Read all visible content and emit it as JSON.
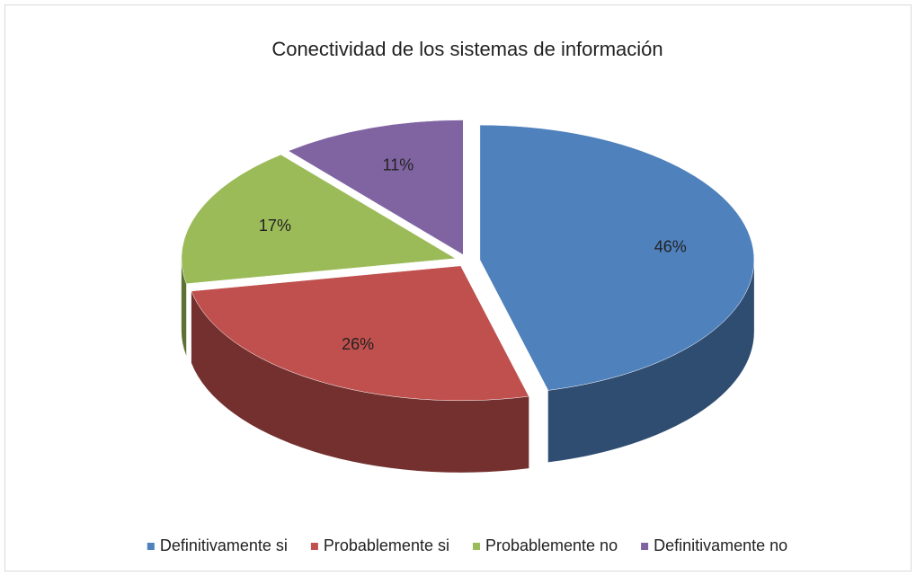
{
  "chart_data": {
    "type": "pie",
    "title": "Conectividad de los sistemas de información",
    "categories": [
      "Definitivamente si",
      "Probablemente si",
      "Probablemente no",
      "Definitivamente no"
    ],
    "values": [
      46,
      26,
      17,
      11
    ],
    "value_labels": [
      "46%",
      "26%",
      "17%",
      "11%"
    ],
    "colors": [
      "#4f81bd",
      "#c0504d",
      "#9bbb59",
      "#8064a2"
    ],
    "legend": "bottom"
  }
}
